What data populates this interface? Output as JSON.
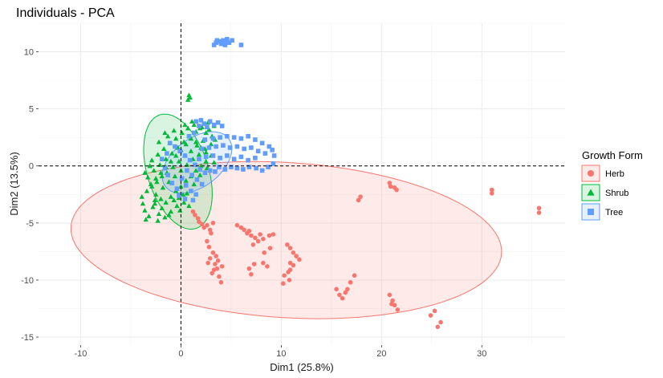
{
  "chart_data": {
    "type": "scatter",
    "title": "Individuals - PCA",
    "xlabel": "Dim1 (25.8%)",
    "ylabel": "Dim2 (13.5%)",
    "xlim": [
      -14.2,
      38.3
    ],
    "ylim": [
      -15.7,
      12.5
    ],
    "x_ticks": [
      -10,
      0,
      10,
      20,
      30
    ],
    "y_ticks": [
      -15,
      -10,
      -5,
      0,
      5,
      10
    ],
    "grid": true,
    "reference_lines": {
      "x": 0,
      "y": 0,
      "style": "dashed"
    },
    "legend": {
      "title": "Growth Form",
      "position": "right"
    },
    "series": [
      {
        "name": "Herb",
        "color": "#F8766D",
        "marker": "circle",
        "ellipse": {
          "cx": 10.5,
          "cy": -6.5,
          "rx": 21.5,
          "ry": 6.8,
          "angle": -3
        },
        "points": [
          [
            1.2,
            -4.0
          ],
          [
            1.4,
            -4.3
          ],
          [
            1.7,
            -4.6
          ],
          [
            1.8,
            -4.9
          ],
          [
            2.1,
            -5.1
          ],
          [
            2.3,
            -5.4
          ],
          [
            2.6,
            -5.2
          ],
          [
            2.9,
            -5.6
          ],
          [
            3.2,
            -5.0
          ],
          [
            3.0,
            -5.9
          ],
          [
            2.6,
            -6.6
          ],
          [
            2.8,
            -7.1
          ],
          [
            3.2,
            -7.6
          ],
          [
            2.9,
            -8.1
          ],
          [
            3.4,
            -8.6
          ],
          [
            3.6,
            -9.0
          ],
          [
            3.1,
            -9.4
          ],
          [
            3.8,
            -9.7
          ],
          [
            3.3,
            -9.1
          ],
          [
            3.7,
            -8.3
          ],
          [
            4.0,
            -10.2
          ],
          [
            4.1,
            -8.8
          ],
          [
            3.5,
            -7.9
          ],
          [
            2.7,
            -8.5
          ],
          [
            5.6,
            -5.2
          ],
          [
            6.0,
            -5.4
          ],
          [
            6.3,
            -5.6
          ],
          [
            6.6,
            -5.9
          ],
          [
            7.0,
            -6.1
          ],
          [
            7.4,
            -6.3
          ],
          [
            7.7,
            -6.6
          ],
          [
            7.2,
            -6.9
          ],
          [
            6.8,
            -5.7
          ],
          [
            7.9,
            -6.0
          ],
          [
            8.2,
            -6.4
          ],
          [
            8.8,
            -6.1
          ],
          [
            9.2,
            -6.0
          ],
          [
            6.8,
            -9.0
          ],
          [
            7.0,
            -9.5
          ],
          [
            7.3,
            -8.6
          ],
          [
            8.2,
            -8.5
          ],
          [
            8.6,
            -8.8
          ],
          [
            8.3,
            -7.6
          ],
          [
            8.9,
            -7.2
          ],
          [
            10.6,
            -6.9
          ],
          [
            10.9,
            -7.2
          ],
          [
            11.2,
            -7.6
          ],
          [
            11.5,
            -7.9
          ],
          [
            11.8,
            -8.2
          ],
          [
            10.9,
            -8.5
          ],
          [
            10.7,
            -9.3
          ],
          [
            10.3,
            -9.6
          ],
          [
            10.9,
            -9.1
          ],
          [
            10.2,
            -10.3
          ],
          [
            10.8,
            -10.0
          ],
          [
            11.2,
            -8.7
          ],
          [
            15.5,
            -10.8
          ],
          [
            15.8,
            -11.3
          ],
          [
            16.1,
            -11.6
          ],
          [
            16.6,
            -10.8
          ],
          [
            16.9,
            -10.2
          ],
          [
            17.3,
            -9.6
          ],
          [
            16.4,
            -11.1
          ],
          [
            17.7,
            -3.0
          ],
          [
            17.9,
            -2.7
          ],
          [
            20.8,
            -1.5
          ],
          [
            20.9,
            -1.8
          ],
          [
            21.3,
            -1.9
          ],
          [
            21.5,
            -2.1
          ],
          [
            20.8,
            -11.3
          ],
          [
            21.1,
            -11.8
          ],
          [
            21.3,
            -12.2
          ],
          [
            21.6,
            -12.6
          ],
          [
            21.0,
            -12.1
          ],
          [
            24.9,
            -13.1
          ],
          [
            25.3,
            -12.7
          ],
          [
            25.6,
            -14.1
          ],
          [
            25.9,
            -13.7
          ],
          [
            31.0,
            -2.1
          ],
          [
            31.0,
            -2.4
          ],
          [
            35.7,
            -3.7
          ],
          [
            35.7,
            -4.1
          ]
        ]
      },
      {
        "name": "Shrub",
        "color": "#00BA38",
        "marker": "triangle",
        "ellipse": {
          "cx": -0.3,
          "cy": -0.5,
          "rx": 3.0,
          "ry": 5.3,
          "angle": 22
        },
        "points": [
          [
            0.8,
            6.2
          ],
          [
            0.7,
            5.8
          ],
          [
            0.9,
            6.0
          ],
          [
            -3.2,
            -4.4
          ],
          [
            -3.6,
            -3.9
          ],
          [
            -2.8,
            -3.6
          ],
          [
            -2.2,
            -4.2
          ],
          [
            -1.6,
            -4.5
          ],
          [
            -1.0,
            -4.0
          ],
          [
            -0.4,
            -3.5
          ],
          [
            0.2,
            -2.5
          ],
          [
            -2.6,
            -3.0
          ],
          [
            -3.9,
            -2.7
          ],
          [
            -3.4,
            -2.2
          ],
          [
            -2.9,
            -1.8
          ],
          [
            -2.4,
            -1.4
          ],
          [
            -1.9,
            -0.9
          ],
          [
            -1.4,
            -0.6
          ],
          [
            -0.8,
            -0.1
          ],
          [
            -0.2,
            0.4
          ],
          [
            0.4,
            0.9
          ],
          [
            1.0,
            1.3
          ],
          [
            1.6,
            1.8
          ],
          [
            2.2,
            2.2
          ],
          [
            -3.3,
            -1.0
          ],
          [
            -2.7,
            -0.4
          ],
          [
            -2.1,
            0.1
          ],
          [
            -1.5,
            0.6
          ],
          [
            -0.9,
            1.1
          ],
          [
            -0.3,
            1.6
          ],
          [
            0.3,
            2.1
          ],
          [
            0.9,
            2.6
          ],
          [
            1.5,
            3.0
          ],
          [
            2.1,
            3.4
          ],
          [
            2.7,
            3.8
          ],
          [
            -2.9,
            0.5
          ],
          [
            -2.3,
            1.0
          ],
          [
            -1.7,
            1.5
          ],
          [
            -1.1,
            2.0
          ],
          [
            -0.5,
            2.4
          ],
          [
            0.1,
            2.9
          ],
          [
            0.7,
            3.3
          ],
          [
            1.3,
            3.6
          ],
          [
            1.9,
            3.3
          ],
          [
            2.5,
            2.9
          ],
          [
            3.1,
            2.6
          ],
          [
            -2.5,
            -2.5
          ],
          [
            -2.0,
            -2.9
          ],
          [
            -1.5,
            -3.2
          ],
          [
            -1.0,
            -2.7
          ],
          [
            -0.5,
            -2.2
          ],
          [
            0.0,
            -1.8
          ],
          [
            0.5,
            -1.3
          ],
          [
            1.0,
            -0.9
          ],
          [
            1.5,
            -0.4
          ],
          [
            2.0,
            0.0
          ],
          [
            2.5,
            0.4
          ],
          [
            3.0,
            0.9
          ],
          [
            -3.0,
            -1.6
          ],
          [
            -2.5,
            -1.1
          ],
          [
            -2.0,
            -0.6
          ],
          [
            -1.5,
            -0.1
          ],
          [
            -1.0,
            0.4
          ],
          [
            -0.5,
            0.9
          ],
          [
            0.0,
            1.4
          ],
          [
            0.5,
            1.9
          ],
          [
            1.0,
            2.4
          ],
          [
            1.5,
            2.1
          ],
          [
            2.0,
            1.6
          ],
          [
            2.5,
            1.2
          ],
          [
            -1.8,
            -1.9
          ],
          [
            -1.2,
            -1.4
          ],
          [
            -0.6,
            -0.9
          ],
          [
            0.0,
            -0.4
          ],
          [
            0.6,
            0.1
          ],
          [
            1.2,
            0.6
          ],
          [
            1.8,
            1.0
          ],
          [
            2.4,
            1.5
          ],
          [
            3.0,
            1.9
          ],
          [
            3.4,
            2.3
          ],
          [
            -3.6,
            -0.6
          ],
          [
            -3.1,
            0.0
          ],
          [
            -2.6,
            -3.3
          ],
          [
            -1.9,
            -3.7
          ],
          [
            -0.7,
            -3.0
          ],
          [
            0.3,
            -3.2
          ],
          [
            -1.3,
            2.6
          ],
          [
            -0.7,
            3.1
          ],
          [
            0.4,
            3.6
          ],
          [
            1.1,
            3.9
          ],
          [
            -2.2,
            2.1
          ],
          [
            -1.6,
            2.9
          ],
          [
            2.8,
            3.2
          ],
          [
            3.3,
            3.5
          ],
          [
            0.6,
            -2.4
          ],
          [
            1.3,
            -1.6
          ],
          [
            1.9,
            -0.8
          ],
          [
            2.6,
            -0.2
          ],
          [
            3.3,
            0.3
          ],
          [
            -0.2,
            -2.8
          ],
          [
            -3.8,
            -3.3
          ],
          [
            -3.5,
            -4.7
          ],
          [
            -2.3,
            -4.8
          ],
          [
            -1.2,
            -4.3
          ],
          [
            -0.1,
            -3.9
          ],
          [
            0.8,
            -3.5
          ]
        ]
      },
      {
        "name": "Tree",
        "color": "#619CFF",
        "marker": "square",
        "ellipse": {
          "cx": 1.6,
          "cy": 0.3,
          "rx": 3.8,
          "ry": 2.2,
          "angle": 30
        },
        "points": [
          [
            3.5,
            10.8
          ],
          [
            3.8,
            10.9
          ],
          [
            4.2,
            11.0
          ],
          [
            4.5,
            10.9
          ],
          [
            4.8,
            10.8
          ],
          [
            5.1,
            11.0
          ],
          [
            3.3,
            10.6
          ],
          [
            4.0,
            10.7
          ],
          [
            4.6,
            11.1
          ],
          [
            6.0,
            10.6
          ],
          [
            3.6,
            11.0
          ],
          [
            4.4,
            10.6
          ],
          [
            1.5,
            3.9
          ],
          [
            2.0,
            4.0
          ],
          [
            2.3,
            3.7
          ],
          [
            2.9,
            3.9
          ],
          [
            3.3,
            3.6
          ],
          [
            3.7,
            3.8
          ],
          [
            4.1,
            3.5
          ],
          [
            2.6,
            3.4
          ],
          [
            1.8,
            3.5
          ],
          [
            2.4,
            2.3
          ],
          [
            3.2,
            2.4
          ],
          [
            3.9,
            2.5
          ],
          [
            4.6,
            2.6
          ],
          [
            5.3,
            2.5
          ],
          [
            6.0,
            2.4
          ],
          [
            6.7,
            2.6
          ],
          [
            7.4,
            2.3
          ],
          [
            8.1,
            2.0
          ],
          [
            8.8,
            1.7
          ],
          [
            2.1,
            1.5
          ],
          [
            2.8,
            1.6
          ],
          [
            3.5,
            1.7
          ],
          [
            4.2,
            1.8
          ],
          [
            4.9,
            1.6
          ],
          [
            5.6,
            1.7
          ],
          [
            6.3,
            1.5
          ],
          [
            7.0,
            1.6
          ],
          [
            7.7,
            1.3
          ],
          [
            8.4,
            1.1
          ],
          [
            9.1,
            1.4
          ],
          [
            9.3,
            0.9
          ],
          [
            1.8,
            0.6
          ],
          [
            2.5,
            0.8
          ],
          [
            3.2,
            0.9
          ],
          [
            3.9,
            0.7
          ],
          [
            4.6,
            0.9
          ],
          [
            5.3,
            0.6
          ],
          [
            6.0,
            0.8
          ],
          [
            6.7,
            0.5
          ],
          [
            7.4,
            0.7
          ],
          [
            5.0,
            -0.1
          ],
          [
            5.6,
            -0.2
          ],
          [
            6.2,
            -0.3
          ],
          [
            6.8,
            -0.1
          ],
          [
            7.5,
            -0.2
          ],
          [
            8.1,
            -0.4
          ],
          [
            8.7,
            -0.1
          ],
          [
            9.2,
            0.2
          ],
          [
            4.4,
            -0.3
          ],
          [
            3.8,
            -0.1
          ],
          [
            3.4,
            -0.5
          ],
          [
            2.9,
            -0.4
          ],
          [
            2.4,
            -0.6
          ],
          [
            1.9,
            -0.3
          ],
          [
            1.4,
            0.1
          ],
          [
            0.9,
            0.5
          ],
          [
            0.4,
            0.9
          ],
          [
            -0.1,
            1.3
          ],
          [
            -0.6,
            1.7
          ],
          [
            -1.1,
            2.0
          ],
          [
            0.6,
            -0.4
          ],
          [
            1.1,
            -0.8
          ],
          [
            1.6,
            -1.2
          ],
          [
            2.1,
            -1.6
          ],
          [
            0.1,
            -1.1
          ],
          [
            0.5,
            -1.7
          ],
          [
            1.0,
            -2.2
          ],
          [
            1.5,
            -2.5
          ],
          [
            -0.4,
            -2.0
          ],
          [
            -0.9,
            -1.5
          ],
          [
            -1.3,
            -0.8
          ],
          [
            -1.6,
            -0.2
          ],
          [
            -1.9,
            0.6
          ],
          [
            -1.4,
            1.1
          ],
          [
            0.8,
            2.6
          ],
          [
            1.3,
            2.9
          ],
          [
            -0.2,
            -2.6
          ],
          [
            0.4,
            -2.9
          ],
          [
            1.2,
            -3.0
          ]
        ]
      }
    ]
  }
}
